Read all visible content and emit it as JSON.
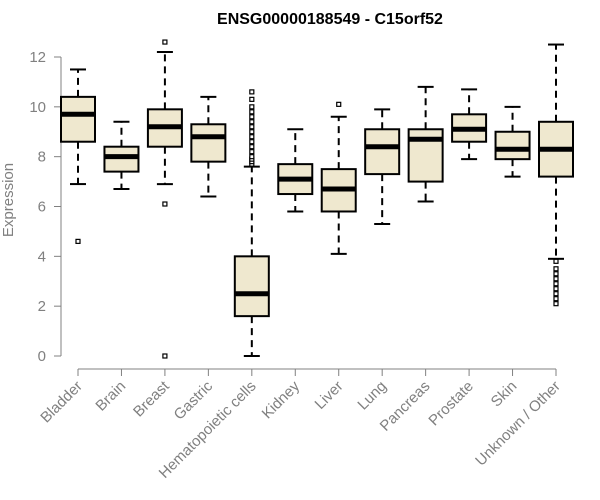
{
  "chart_data": {
    "type": "boxplot",
    "title": "ENSG00000188549 - C15orf52",
    "xlabel": "",
    "ylabel": "Expression",
    "ylim": [
      0,
      12
    ],
    "yticks": [
      "0",
      "2",
      "4",
      "6",
      "8",
      "10",
      "12"
    ],
    "grid": false,
    "legend": "none",
    "colors": {
      "box_fill": "#efe8cf",
      "box_stroke": "#000000",
      "median": "#000000",
      "axis": "#808080"
    },
    "categories": [
      "Bladder",
      "Brain",
      "Breast",
      "Gastric",
      "Hematopoietic cells",
      "Kidney",
      "Liver",
      "Lung",
      "Pancreas",
      "Prostate",
      "Skin",
      "Unknown / Other"
    ],
    "boxes": [
      {
        "category": "Bladder",
        "whisker_low": 6.9,
        "q1": 8.6,
        "median": 9.7,
        "q3": 10.4,
        "whisker_high": 11.5,
        "outliers": [
          4.6
        ]
      },
      {
        "category": "Brain",
        "whisker_low": 6.7,
        "q1": 7.4,
        "median": 8.0,
        "q3": 8.4,
        "whisker_high": 9.4,
        "outliers": []
      },
      {
        "category": "Breast",
        "whisker_low": 6.9,
        "q1": 8.4,
        "median": 9.2,
        "q3": 9.9,
        "whisker_high": 12.2,
        "outliers": [
          12.6,
          6.1,
          0.0
        ]
      },
      {
        "category": "Gastric",
        "whisker_low": 6.4,
        "q1": 7.8,
        "median": 8.8,
        "q3": 9.3,
        "whisker_high": 10.4,
        "outliers": []
      },
      {
        "category": "Hematopoietic cells",
        "whisker_low": 0.0,
        "q1": 1.6,
        "median": 2.5,
        "q3": 4.0,
        "whisker_high": 7.6,
        "outliers": [
          7.7,
          7.8,
          7.9,
          8.0,
          8.2,
          8.4,
          8.6,
          8.8,
          9.0,
          9.2,
          9.4,
          9.6,
          9.8,
          10.0,
          10.3,
          10.6
        ]
      },
      {
        "category": "Kidney",
        "whisker_low": 5.8,
        "q1": 6.5,
        "median": 7.1,
        "q3": 7.7,
        "whisker_high": 9.1,
        "outliers": []
      },
      {
        "category": "Liver",
        "whisker_low": 4.1,
        "q1": 5.8,
        "median": 6.7,
        "q3": 7.5,
        "whisker_high": 9.6,
        "outliers": [
          10.1
        ]
      },
      {
        "category": "Lung",
        "whisker_low": 5.3,
        "q1": 7.3,
        "median": 8.4,
        "q3": 9.1,
        "whisker_high": 9.9,
        "outliers": []
      },
      {
        "category": "Pancreas",
        "whisker_low": 6.2,
        "q1": 7.0,
        "median": 8.7,
        "q3": 9.1,
        "whisker_high": 10.8,
        "outliers": []
      },
      {
        "category": "Prostate",
        "whisker_low": 7.9,
        "q1": 8.6,
        "median": 9.1,
        "q3": 9.7,
        "whisker_high": 10.7,
        "outliers": []
      },
      {
        "category": "Skin",
        "whisker_low": 7.2,
        "q1": 7.9,
        "median": 8.3,
        "q3": 9.0,
        "whisker_high": 10.0,
        "outliers": []
      },
      {
        "category": "Unknown / Other",
        "whisker_low": 3.9,
        "q1": 7.2,
        "median": 8.3,
        "q3": 9.4,
        "whisker_high": 12.5,
        "outliers": [
          3.8,
          3.5,
          3.3,
          3.1,
          2.9,
          2.7,
          2.5,
          2.3,
          2.1
        ]
      }
    ]
  }
}
